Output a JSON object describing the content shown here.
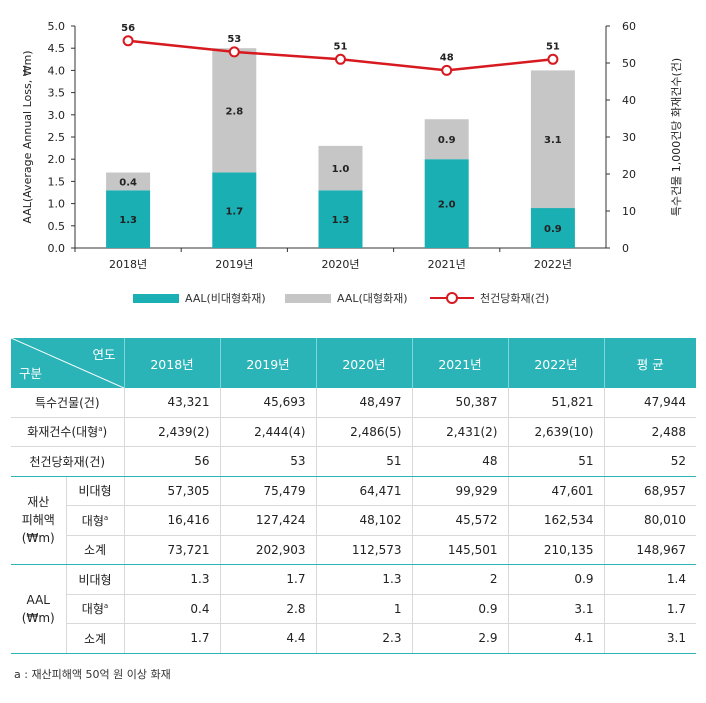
{
  "chart_data": {
    "type": "bar",
    "categories": [
      "2018년",
      "2019년",
      "2020년",
      "2021년",
      "2022년"
    ],
    "series": [
      {
        "name": "AAL(비대형화재)",
        "values": [
          1.3,
          1.7,
          1.3,
          2.0,
          0.9
        ],
        "labels": [
          "1.3",
          "1.7",
          "1.3",
          "2.0",
          "0.9"
        ],
        "color": "#1aafb3",
        "stack": "aal"
      },
      {
        "name": "AAL(대형화재)",
        "values": [
          0.4,
          2.8,
          1.0,
          0.9,
          3.1
        ],
        "labels": [
          "0.4",
          "2.8",
          "1.0",
          "0.9",
          "3.1"
        ],
        "color": "#c6c6c6",
        "stack": "aal"
      },
      {
        "name": "천건당화재(건)",
        "type": "line",
        "axis": "right",
        "values": [
          56,
          53,
          51,
          48,
          51
        ],
        "labels": [
          "56",
          "53",
          "51",
          "48",
          "51"
        ],
        "color": "#d71920"
      }
    ],
    "ylabel": "AAL(Average Annual Loss, ₩m)",
    "y2label": "특수건물 1,000건당 화재건수(건)",
    "ylim": [
      0,
      5.0
    ],
    "y2lim": [
      0,
      60
    ],
    "yticks": [
      "0.0",
      "0.5",
      "1.0",
      "1.5",
      "2.0",
      "2.5",
      "3.0",
      "3.5",
      "4.0",
      "4.5",
      "5.0"
    ],
    "y2ticks": [
      "0",
      "10",
      "20",
      "30",
      "40",
      "50",
      "60"
    ],
    "grid": false,
    "legend_position": "bottom"
  },
  "table": {
    "corner_year": "연도",
    "corner_group": "구분",
    "headers": [
      "2018년",
      "2019년",
      "2020년",
      "2021년",
      "2022년",
      "평 균"
    ],
    "rows": {
      "buildings": {
        "label": "특수건물(건)",
        "values": [
          "43,321",
          "45,693",
          "48,497",
          "50,387",
          "51,821",
          "47,944"
        ]
      },
      "fires": {
        "label": "화재건수(대형",
        "sup": "a",
        "label_end": ")",
        "values": [
          "2,439(2)",
          "2,444(4)",
          "2,486(5)",
          "2,431(2)",
          "2,639(10)",
          "2,488"
        ]
      },
      "per_thousand": {
        "label": "천건당화재(건)",
        "values": [
          "56",
          "53",
          "51",
          "48",
          "51",
          "52"
        ]
      }
    },
    "damage": {
      "group_line1": "재산",
      "group_line2": "피해액",
      "group_line3": "(₩m)",
      "nonlarge": {
        "label": "비대형",
        "values": [
          "57,305",
          "75,479",
          "64,471",
          "99,929",
          "47,601",
          "68,957"
        ]
      },
      "large": {
        "label": "대형",
        "sup": "a",
        "values": [
          "16,416",
          "127,424",
          "48,102",
          "45,572",
          "162,534",
          "80,010"
        ]
      },
      "subtotal": {
        "label": "소계",
        "values": [
          "73,721",
          "202,903",
          "112,573",
          "145,501",
          "210,135",
          "148,967"
        ]
      }
    },
    "aal": {
      "group_line1": "AAL",
      "group_line2": "(₩m)",
      "nonlarge": {
        "label": "비대형",
        "values": [
          "1.3",
          "1.7",
          "1.3",
          "2",
          "0.9",
          "1.4"
        ]
      },
      "large": {
        "label": "대형",
        "sup": "a",
        "values": [
          "0.4",
          "2.8",
          "1",
          "0.9",
          "3.1",
          "1.7"
        ]
      },
      "subtotal": {
        "label": "소계",
        "values": [
          "1.7",
          "4.4",
          "2.3",
          "2.9",
          "4.1",
          "3.1"
        ]
      }
    }
  },
  "footnote": "a : 재산피해액 50억 원 이상 화재"
}
